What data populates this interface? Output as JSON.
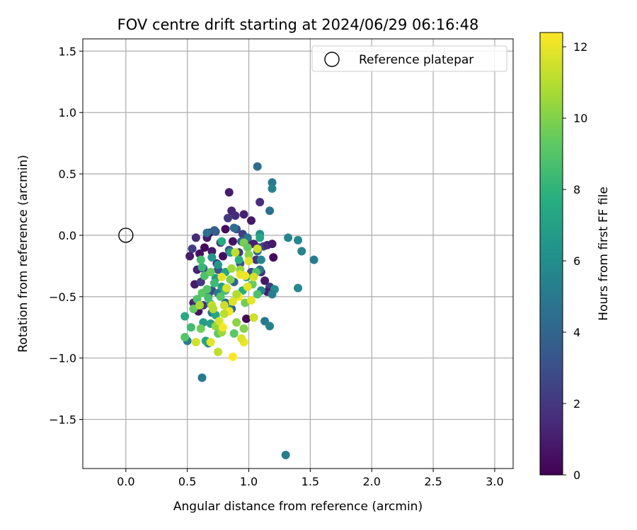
{
  "chart_data": {
    "type": "scatter",
    "title": "FOV centre drift starting at 2024/06/29 06:16:48",
    "xlabel": "Angular distance from reference (arcmin)",
    "ylabel": "Rotation from reference (arcmin)",
    "xlim": [
      -0.35,
      3.15
    ],
    "ylim": [
      -1.9,
      1.6
    ],
    "xticks": [
      0.0,
      0.5,
      1.0,
      1.5,
      2.0,
      2.5,
      3.0
    ],
    "xtick_labels": [
      "0.0",
      "0.5",
      "1.0",
      "1.5",
      "2.0",
      "2.5",
      "3.0"
    ],
    "yticks": [
      -1.5,
      -1.0,
      -0.5,
      0.0,
      0.5,
      1.0,
      1.5
    ],
    "ytick_labels": [
      "−1.5",
      "−1.0",
      "−0.5",
      "0.0",
      "0.5",
      "1.0",
      "1.5"
    ],
    "grid": true,
    "legend": {
      "position": "top-right",
      "entries": [
        "Reference platepar"
      ]
    },
    "reference_point": {
      "label": "Reference platepar",
      "x": 0.0,
      "y": 0.0
    },
    "colorbar": {
      "label": "Hours from first FF file",
      "colormap": "viridis",
      "range": [
        0,
        12.4
      ],
      "ticks": [
        0,
        2,
        4,
        6,
        8,
        10,
        12
      ],
      "tick_labels": [
        "0",
        "2",
        "4",
        "6",
        "8",
        "10",
        "12"
      ]
    },
    "points": [
      {
        "x": 0.84,
        "y": 0.35,
        "t": 1.0
      },
      {
        "x": 0.86,
        "y": 0.2,
        "t": 1.3
      },
      {
        "x": 0.89,
        "y": 0.16,
        "t": 1.5
      },
      {
        "x": 0.96,
        "y": 0.17,
        "t": 1.2
      },
      {
        "x": 1.02,
        "y": 0.12,
        "t": 0.8
      },
      {
        "x": 1.09,
        "y": 0.27,
        "t": 1.6
      },
      {
        "x": 0.83,
        "y": 0.14,
        "t": 2.0
      },
      {
        "x": 0.81,
        "y": 0.05,
        "t": 0.4
      },
      {
        "x": 0.66,
        "y": -0.02,
        "t": 1.0
      },
      {
        "x": 0.68,
        "y": 0.02,
        "t": 0.2
      },
      {
        "x": 0.57,
        "y": -0.02,
        "t": 1.5
      },
      {
        "x": 0.54,
        "y": -0.11,
        "t": 2.2
      },
      {
        "x": 0.52,
        "y": -0.17,
        "t": 1.0
      },
      {
        "x": 0.6,
        "y": -0.15,
        "t": 0.5
      },
      {
        "x": 0.64,
        "y": -0.1,
        "t": 0.3
      },
      {
        "x": 0.7,
        "y": -0.13,
        "t": 0.8
      },
      {
        "x": 0.73,
        "y": 0.03,
        "t": 2.8
      },
      {
        "x": 0.77,
        "y": -0.06,
        "t": 1.7
      },
      {
        "x": 0.9,
        "y": 0.05,
        "t": 3.0
      },
      {
        "x": 0.95,
        "y": 0.01,
        "t": 2.4
      },
      {
        "x": 0.87,
        "y": -0.05,
        "t": 0.6
      },
      {
        "x": 0.99,
        "y": -0.04,
        "t": 1.9
      },
      {
        "x": 1.04,
        "y": -0.07,
        "t": 1.1
      },
      {
        "x": 1.08,
        "y": -0.1,
        "t": 0.7
      },
      {
        "x": 1.12,
        "y": -0.09,
        "t": 2.6
      },
      {
        "x": 1.15,
        "y": -0.08,
        "t": 1.4
      },
      {
        "x": 1.19,
        "y": -0.07,
        "t": 0.9
      },
      {
        "x": 1.2,
        "y": -0.18,
        "t": 0.3
      },
      {
        "x": 1.06,
        "y": -0.2,
        "t": 1.8
      },
      {
        "x": 0.92,
        "y": -0.14,
        "t": 2.2
      },
      {
        "x": 0.79,
        "y": -0.17,
        "t": 0.5
      },
      {
        "x": 0.74,
        "y": -0.23,
        "t": 1.6
      },
      {
        "x": 0.63,
        "y": -0.27,
        "t": 2.5
      },
      {
        "x": 0.58,
        "y": -0.28,
        "t": 1.2
      },
      {
        "x": 0.56,
        "y": -0.4,
        "t": 0.9
      },
      {
        "x": 0.61,
        "y": -0.38,
        "t": 2.0
      },
      {
        "x": 0.55,
        "y": -0.55,
        "t": 1.3
      },
      {
        "x": 0.59,
        "y": -0.62,
        "t": 0.6
      },
      {
        "x": 0.63,
        "y": -0.57,
        "t": 1.9
      },
      {
        "x": 0.67,
        "y": -0.49,
        "t": 1.1
      },
      {
        "x": 1.02,
        "y": -0.3,
        "t": 2.7
      },
      {
        "x": 1.1,
        "y": -0.3,
        "t": 1.5
      },
      {
        "x": 1.13,
        "y": -0.37,
        "t": 0.8
      },
      {
        "x": 1.17,
        "y": -0.42,
        "t": 2.3
      },
      {
        "x": 1.15,
        "y": -0.46,
        "t": 1.0
      },
      {
        "x": 0.98,
        "y": -0.68,
        "t": 0.2
      },
      {
        "x": 0.7,
        "y": -0.45,
        "t": 2.9
      },
      {
        "x": 0.75,
        "y": -0.28,
        "t": 3.2
      },
      {
        "x": 0.84,
        "y": -0.12,
        "t": 3.4
      },
      {
        "x": 0.93,
        "y": -0.23,
        "t": 3.1
      },
      {
        "x": 1.07,
        "y": 0.56,
        "t": 4.3
      },
      {
        "x": 1.19,
        "y": 0.43,
        "t": 5.0
      },
      {
        "x": 1.19,
        "y": 0.38,
        "t": 5.5
      },
      {
        "x": 1.17,
        "y": 0.2,
        "t": 4.5
      },
      {
        "x": 1.09,
        "y": 0.01,
        "t": 6.2
      },
      {
        "x": 1.32,
        "y": -0.02,
        "t": 5.6
      },
      {
        "x": 1.4,
        "y": -0.04,
        "t": 5.8
      },
      {
        "x": 1.43,
        "y": -0.13,
        "t": 5.5
      },
      {
        "x": 1.53,
        "y": -0.2,
        "t": 5.2
      },
      {
        "x": 1.4,
        "y": -0.43,
        "t": 5.9
      },
      {
        "x": 1.21,
        "y": -0.44,
        "t": 6.0
      },
      {
        "x": 1.19,
        "y": -0.48,
        "t": 5.3
      },
      {
        "x": 1.1,
        "y": -0.45,
        "t": 5.7
      },
      {
        "x": 1.13,
        "y": -0.7,
        "t": 5.0
      },
      {
        "x": 1.17,
        "y": -0.74,
        "t": 5.4
      },
      {
        "x": 0.62,
        "y": -1.16,
        "t": 5.0
      },
      {
        "x": 1.3,
        "y": -1.79,
        "t": 5.2
      },
      {
        "x": 0.5,
        "y": -0.86,
        "t": 5.2
      },
      {
        "x": 0.67,
        "y": -0.88,
        "t": 6.0
      },
      {
        "x": 0.7,
        "y": -0.63,
        "t": 5.1
      },
      {
        "x": 0.75,
        "y": -0.47,
        "t": 4.9
      },
      {
        "x": 0.66,
        "y": 0.02,
        "t": 4.5
      },
      {
        "x": 0.72,
        "y": 0.04,
        "t": 3.8
      },
      {
        "x": 0.88,
        "y": 0.06,
        "t": 4.6
      },
      {
        "x": 0.94,
        "y": -0.05,
        "t": 4.2
      },
      {
        "x": 0.99,
        "y": -0.02,
        "t": 4.8
      },
      {
        "x": 1.07,
        "y": -0.13,
        "t": 4.3
      },
      {
        "x": 1.1,
        "y": -0.2,
        "t": 5.6
      },
      {
        "x": 1.09,
        "y": -0.28,
        "t": 4.9
      },
      {
        "x": 0.88,
        "y": -0.38,
        "t": 4.1
      },
      {
        "x": 0.81,
        "y": -0.55,
        "t": 4.4
      },
      {
        "x": 0.86,
        "y": -0.6,
        "t": 3.9
      },
      {
        "x": 0.7,
        "y": -0.18,
        "t": 6.5
      },
      {
        "x": 0.73,
        "y": -0.35,
        "t": 6.8
      },
      {
        "x": 0.78,
        "y": -0.42,
        "t": 7.0
      },
      {
        "x": 0.81,
        "y": -0.3,
        "t": 7.2
      },
      {
        "x": 0.85,
        "y": -0.14,
        "t": 6.9
      },
      {
        "x": 1.09,
        "y": -0.02,
        "t": 7.3
      },
      {
        "x": 0.69,
        "y": -0.56,
        "t": 7.1
      },
      {
        "x": 0.73,
        "y": -0.65,
        "t": 7.4
      },
      {
        "x": 0.69,
        "y": -0.72,
        "t": 7.0
      },
      {
        "x": 0.63,
        "y": -0.71,
        "t": 6.8
      },
      {
        "x": 0.65,
        "y": -0.86,
        "t": 7.2
      },
      {
        "x": 0.48,
        "y": -0.66,
        "t": 7.5
      },
      {
        "x": 0.75,
        "y": -0.24,
        "t": 6.6
      },
      {
        "x": 0.78,
        "y": -0.05,
        "t": 7.6
      },
      {
        "x": 0.92,
        "y": -0.2,
        "t": 7.8
      },
      {
        "x": 0.98,
        "y": -0.34,
        "t": 7.3
      },
      {
        "x": 0.95,
        "y": -0.45,
        "t": 7.7
      },
      {
        "x": 0.84,
        "y": -0.61,
        "t": 7.5
      },
      {
        "x": 0.62,
        "y": -0.26,
        "t": 8.2
      },
      {
        "x": 0.61,
        "y": -0.2,
        "t": 8.6
      },
      {
        "x": 0.64,
        "y": -0.33,
        "t": 8.8
      },
      {
        "x": 0.66,
        "y": -0.44,
        "t": 9.0
      },
      {
        "x": 0.62,
        "y": -0.47,
        "t": 9.2
      },
      {
        "x": 0.58,
        "y": -0.52,
        "t": 8.9
      },
      {
        "x": 0.55,
        "y": -0.6,
        "t": 9.4
      },
      {
        "x": 0.53,
        "y": -0.75,
        "t": 8.5
      },
      {
        "x": 0.48,
        "y": -0.83,
        "t": 9.0
      },
      {
        "x": 0.61,
        "y": -0.76,
        "t": 9.6
      },
      {
        "x": 0.67,
        "y": -0.51,
        "t": 8.7
      },
      {
        "x": 0.75,
        "y": -0.8,
        "t": 9.3
      },
      {
        "x": 0.72,
        "y": -0.39,
        "t": 8.4
      },
      {
        "x": 0.77,
        "y": -0.5,
        "t": 9.1
      },
      {
        "x": 0.81,
        "y": -0.45,
        "t": 8.6
      },
      {
        "x": 0.96,
        "y": -0.06,
        "t": 9.8
      },
      {
        "x": 0.99,
        "y": -0.1,
        "t": 9.4
      },
      {
        "x": 1.06,
        "y": -0.3,
        "t": 8.9
      },
      {
        "x": 1.03,
        "y": -0.4,
        "t": 9.5
      },
      {
        "x": 1.07,
        "y": -0.48,
        "t": 8.8
      },
      {
        "x": 0.97,
        "y": -0.55,
        "t": 9.7
      },
      {
        "x": 0.88,
        "y": -0.8,
        "t": 9.2
      },
      {
        "x": 0.96,
        "y": -0.76,
        "t": 10.0
      },
      {
        "x": 1.04,
        "y": -0.67,
        "t": 9.6
      },
      {
        "x": 0.9,
        "y": -0.71,
        "t": 10.2
      },
      {
        "x": 0.85,
        "y": -0.36,
        "t": 9.9
      },
      {
        "x": 0.93,
        "y": -0.28,
        "t": 10.4
      },
      {
        "x": 1.0,
        "y": -0.16,
        "t": 10.1
      },
      {
        "x": 0.69,
        "y": -0.3,
        "t": 9.5
      },
      {
        "x": 0.73,
        "y": -0.74,
        "t": 10.3
      },
      {
        "x": 0.78,
        "y": -0.79,
        "t": 10.5
      },
      {
        "x": 1.07,
        "y": -0.11,
        "t": 11.5
      },
      {
        "x": 1.0,
        "y": -0.21,
        "t": 11.8
      },
      {
        "x": 0.89,
        "y": -0.14,
        "t": 11.2
      },
      {
        "x": 0.93,
        "y": -0.32,
        "t": 12.0
      },
      {
        "x": 0.97,
        "y": -0.33,
        "t": 12.1
      },
      {
        "x": 1.04,
        "y": -0.34,
        "t": 11.6
      },
      {
        "x": 0.99,
        "y": -0.42,
        "t": 11.9
      },
      {
        "x": 0.92,
        "y": -0.5,
        "t": 12.2
      },
      {
        "x": 0.87,
        "y": -0.54,
        "t": 11.8
      },
      {
        "x": 0.84,
        "y": -0.62,
        "t": 12.3
      },
      {
        "x": 0.8,
        "y": -0.57,
        "t": 11.4
      },
      {
        "x": 0.78,
        "y": -0.34,
        "t": 12.0
      },
      {
        "x": 0.76,
        "y": -0.7,
        "t": 11.7
      },
      {
        "x": 0.79,
        "y": -0.75,
        "t": 12.2
      },
      {
        "x": 0.7,
        "y": -0.57,
        "t": 11.3
      },
      {
        "x": 0.71,
        "y": -0.6,
        "t": 11.0
      },
      {
        "x": 0.6,
        "y": -0.57,
        "t": 10.8
      },
      {
        "x": 0.57,
        "y": -0.87,
        "t": 11.6
      },
      {
        "x": 0.69,
        "y": -0.87,
        "t": 11.9
      },
      {
        "x": 0.75,
        "y": -0.95,
        "t": 11.2
      },
      {
        "x": 0.87,
        "y": -0.99,
        "t": 12.4
      },
      {
        "x": 0.96,
        "y": -0.87,
        "t": 12.1
      },
      {
        "x": 0.94,
        "y": -0.84,
        "t": 11.8
      },
      {
        "x": 1.04,
        "y": -0.67,
        "t": 11.5
      },
      {
        "x": 1.02,
        "y": -0.53,
        "t": 12.0
      },
      {
        "x": 0.82,
        "y": -0.43,
        "t": 11.7
      },
      {
        "x": 0.9,
        "y": -0.48,
        "t": 10.9
      },
      {
        "x": 0.86,
        "y": -0.27,
        "t": 10.6
      },
      {
        "x": 0.8,
        "y": -0.64,
        "t": 11.1
      }
    ]
  }
}
